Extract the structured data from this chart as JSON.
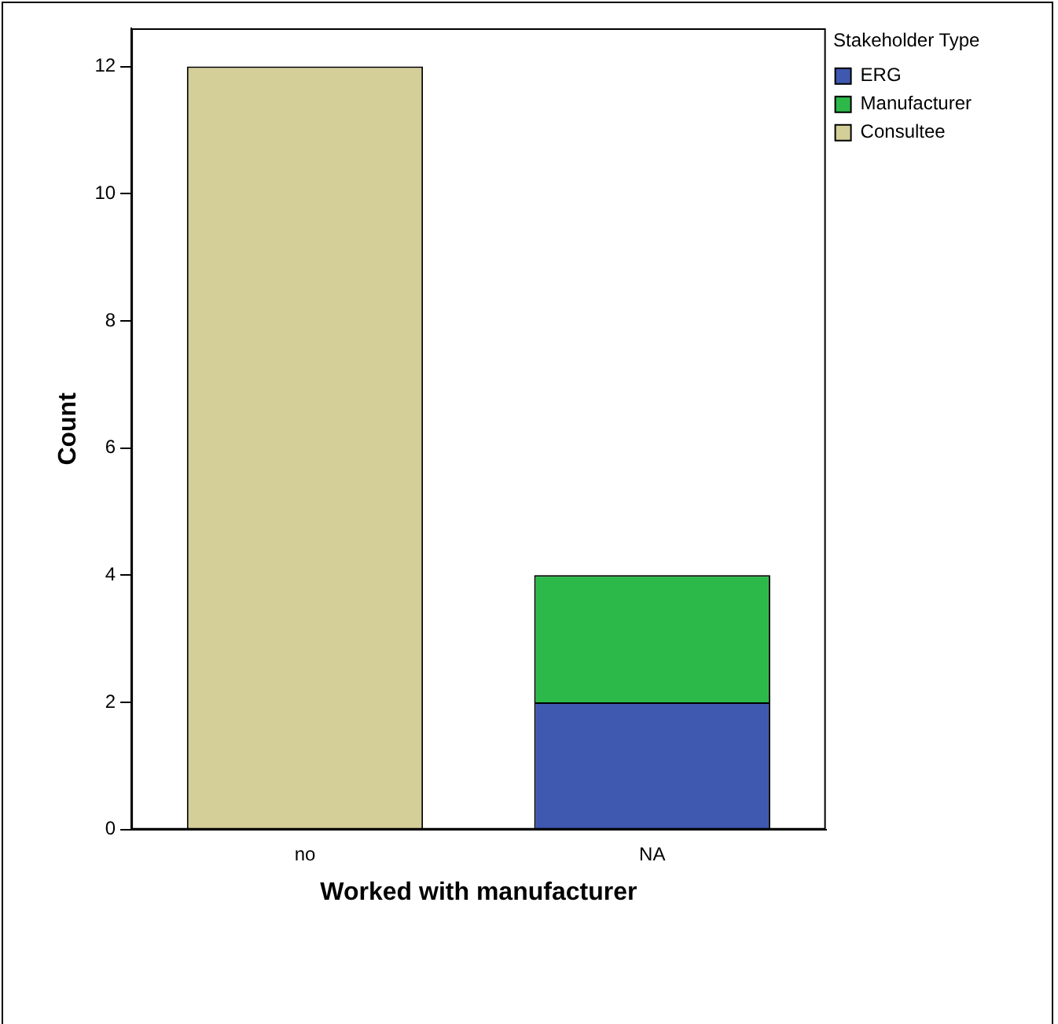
{
  "chart_data": {
    "type": "bar",
    "stacked": true,
    "xlabel": "Worked with manufacturer",
    "ylabel": "Count",
    "legend_title": "Stakeholder Type",
    "legend": "top right",
    "grid": false,
    "categories": [
      "no",
      "NA"
    ],
    "series": [
      {
        "name": "ERG",
        "color": "#3f58b0",
        "values": [
          null,
          2
        ]
      },
      {
        "name": "Manufacturer",
        "color": "#2db84a",
        "values": [
          null,
          2
        ]
      },
      {
        "name": "Consultee",
        "color": "#d4cf98",
        "values": [
          12,
          null
        ]
      }
    ],
    "ylim": [
      0,
      12.6
    ],
    "yticks": [
      0,
      2,
      4,
      6,
      8,
      10,
      12
    ]
  }
}
